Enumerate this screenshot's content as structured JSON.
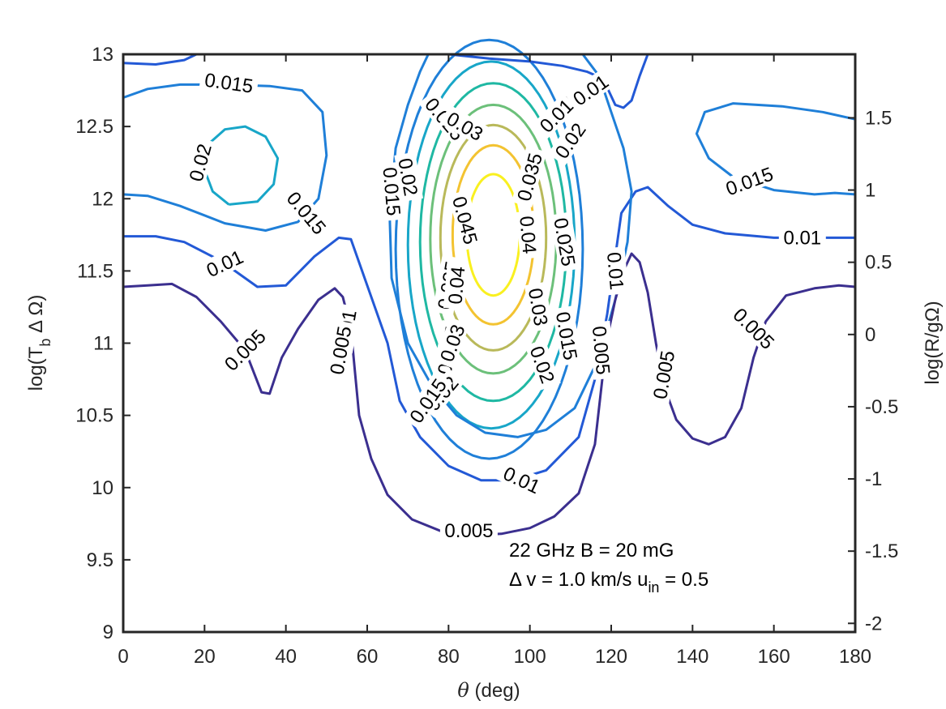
{
  "chart_data": {
    "type": "contour",
    "xlabel": "θ (deg)",
    "ylabel_left": "log(T_b ΔΩ)",
    "ylabel_right": "log(R/gΩ)",
    "xlim": [
      0,
      180
    ],
    "ylim": [
      9,
      13
    ],
    "y2lim": [
      -2.06,
      1.94
    ],
    "xticks": [
      "0",
      "20",
      "40",
      "60",
      "80",
      "100",
      "120",
      "140",
      "160",
      "180"
    ],
    "yticks": [
      "9",
      "9.5",
      "10",
      "10.5",
      "11",
      "11.5",
      "12",
      "12.5",
      "13"
    ],
    "y2ticks": [
      "-2",
      "-1.5",
      "-1",
      "-0.5",
      "0",
      "0.5",
      "1",
      "1.5"
    ],
    "annotation_line1": "22 GHz  B = 20 mG",
    "annotation_line2": "Δ v = 1.0 km/s  u_in = 0.5",
    "levels": [
      {
        "value": 0.005,
        "color": "#3b2f8f"
      },
      {
        "value": 0.01,
        "color": "#2359d6"
      },
      {
        "value": 0.015,
        "color": "#1f7fd8"
      },
      {
        "value": 0.02,
        "color": "#18a6c8"
      },
      {
        "value": 0.025,
        "color": "#1fb8a3"
      },
      {
        "value": 0.03,
        "color": "#6cc07a"
      },
      {
        "value": 0.035,
        "color": "#b9b95a"
      },
      {
        "value": 0.04,
        "color": "#f3c331"
      },
      {
        "value": 0.045,
        "color": "#f9f020"
      }
    ],
    "contour_labels": [
      {
        "text": "0.015",
        "x": 26,
        "y": 12.8,
        "angle": -8
      },
      {
        "text": "0.02",
        "x": 19,
        "y": 12.25,
        "angle": 75
      },
      {
        "text": "0.015",
        "x": 45,
        "y": 11.9,
        "angle": -50
      },
      {
        "text": "0.01",
        "x": 25,
        "y": 11.55,
        "angle": 25
      },
      {
        "text": "0.005",
        "x": 30,
        "y": 10.95,
        "angle": 45
      },
      {
        "text": "0.01",
        "x": 55,
        "y": 11.1,
        "angle": 80
      },
      {
        "text": "0.005",
        "x": 53.5,
        "y": 10.95,
        "angle": 80
      },
      {
        "text": "0.015",
        "x": 66,
        "y": 12.05,
        "angle": -85
      },
      {
        "text": "0.02",
        "x": 70,
        "y": 12.15,
        "angle": -80
      },
      {
        "text": "0.025",
        "x": 79,
        "y": 12.55,
        "angle": -50
      },
      {
        "text": "0.03",
        "x": 84,
        "y": 12.5,
        "angle": -30
      },
      {
        "text": "0.035",
        "x": 100,
        "y": 12.15,
        "angle": 75
      },
      {
        "text": "0.045",
        "x": 84,
        "y": 11.85,
        "angle": -75
      },
      {
        "text": "0.04",
        "x": 99.5,
        "y": 11.75,
        "angle": -85
      },
      {
        "text": "0.025",
        "x": 108.5,
        "y": 11.7,
        "angle": -80
      },
      {
        "text": "0.035",
        "x": 80,
        "y": 11.4,
        "angle": 80
      },
      {
        "text": "0.04",
        "x": 82,
        "y": 11.4,
        "angle": 85
      },
      {
        "text": "0.025",
        "x": 80,
        "y": 10.95,
        "angle": 80
      },
      {
        "text": "0.03",
        "x": 81,
        "y": 11.0,
        "angle": 70
      },
      {
        "text": "0.02",
        "x": 78.5,
        "y": 10.65,
        "angle": 50
      },
      {
        "text": "0.015",
        "x": 75,
        "y": 10.6,
        "angle": 55
      },
      {
        "text": "0.03",
        "x": 102,
        "y": 11.25,
        "angle": -80
      },
      {
        "text": "0.015",
        "x": 109,
        "y": 11.05,
        "angle": -80
      },
      {
        "text": "0.02",
        "x": 103,
        "y": 10.85,
        "angle": -70
      },
      {
        "text": "0.01",
        "x": 121,
        "y": 11.5,
        "angle": -85
      },
      {
        "text": "0.005",
        "x": 117.5,
        "y": 10.95,
        "angle": -85
      },
      {
        "text": "0.005",
        "x": 133,
        "y": 10.78,
        "angle": 80
      },
      {
        "text": "0.015",
        "x": 107.5,
        "y": 12.6,
        "angle": 45
      },
      {
        "text": "0.02",
        "x": 110,
        "y": 12.4,
        "angle": 55
      },
      {
        "text": "0.01",
        "x": 115,
        "y": 12.75,
        "angle": 35
      },
      {
        "text": "0.015",
        "x": 154,
        "y": 12.12,
        "angle": 20
      },
      {
        "text": "0.01",
        "x": 167,
        "y": 11.73,
        "angle": 0
      },
      {
        "text": "0.005",
        "x": 155,
        "y": 11.1,
        "angle": -45
      },
      {
        "text": "0.01",
        "x": 98,
        "y": 10.05,
        "angle": -25
      },
      {
        "text": "0.005",
        "x": 85,
        "y": 9.7,
        "angle": 0
      }
    ]
  }
}
